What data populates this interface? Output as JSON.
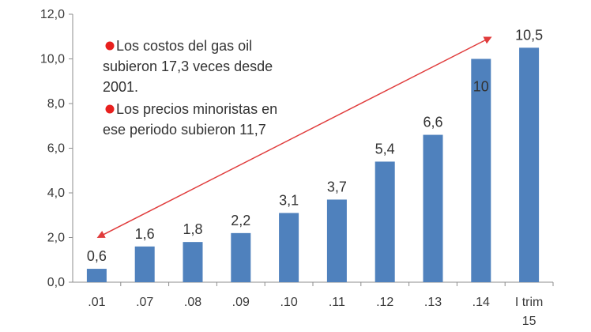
{
  "chart_data": {
    "type": "bar",
    "categories": [
      ".01",
      ".07",
      ".08",
      ".09",
      ".10",
      ".11",
      ".12",
      ".13",
      ".14",
      "I trim 15"
    ],
    "values": [
      0.6,
      1.6,
      1.8,
      2.2,
      3.1,
      3.7,
      5.4,
      6.6,
      10,
      10.5
    ],
    "data_labels": [
      "0,6",
      "1,6",
      "1,8",
      "2,2",
      "3,1",
      "3,7",
      "5,4",
      "6,6",
      "10",
      "10,5"
    ],
    "y_ticks": [
      "0,0",
      "2,0",
      "4,0",
      "6,0",
      "8,0",
      "10,0",
      "12,0"
    ],
    "ylim": [
      0,
      12
    ],
    "title": "",
    "xlabel": "",
    "ylabel": "",
    "grid": false,
    "legend": "none",
    "colors": {
      "bar": "#4F81BD",
      "arrow": "#E03C3C",
      "bullet": "#E8201E",
      "axis": "#8c8c8c"
    },
    "annotations": [
      {
        "lines": [
          "Los costos del gas oil",
          "subieron 17,3 veces desde",
          "2001."
        ]
      },
      {
        "lines": [
          "Los precios minoristas en",
          "ese periodo subieron 11,7"
        ]
      }
    ]
  }
}
